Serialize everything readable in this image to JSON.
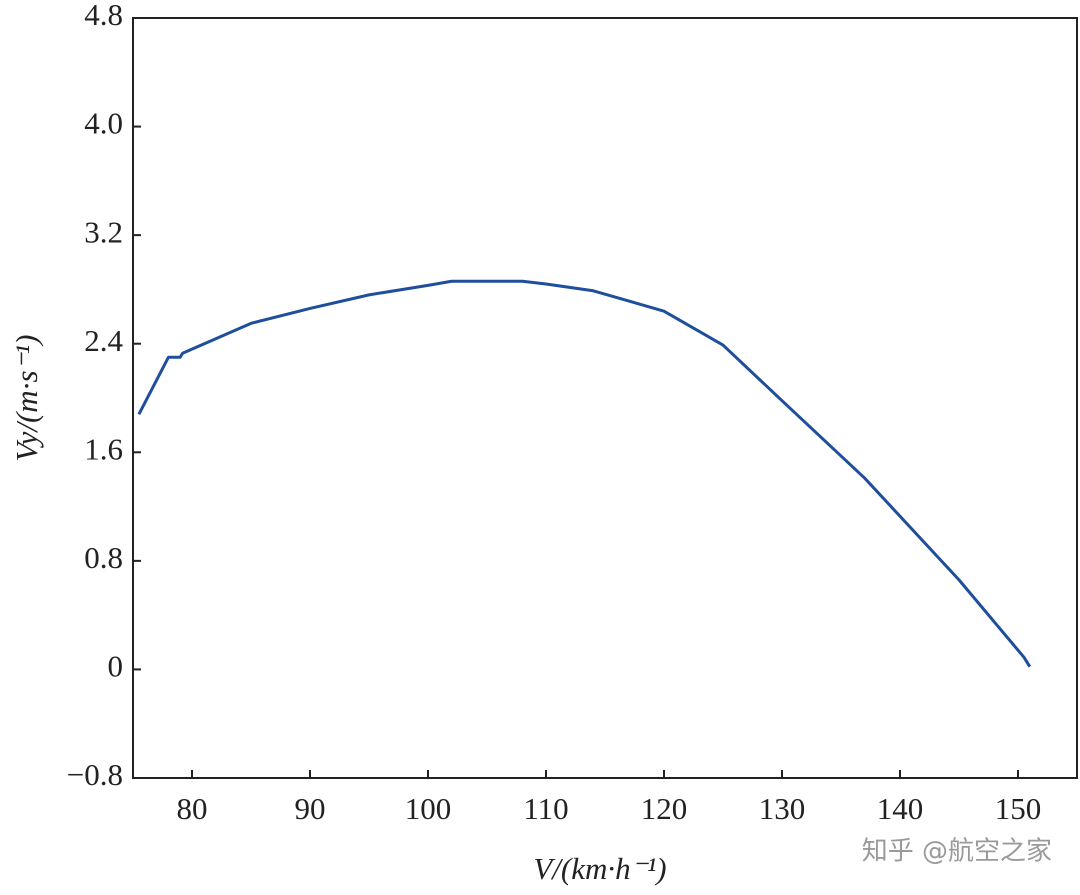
{
  "chart_data": {
    "type": "line",
    "x_label": "V/(km·h⁻¹)",
    "y_label": "Vy/(m·s⁻¹)",
    "watermark": "知乎 @航空之家",
    "x": [
      75.5,
      78,
      79,
      79.2,
      85,
      90,
      95,
      100,
      102,
      108,
      110,
      114,
      120,
      125,
      130,
      137,
      145,
      150.5,
      151
    ],
    "series": [
      {
        "name": "Vy",
        "color": "#1f4e9c",
        "values": [
          1.88,
          2.3,
          2.3,
          2.33,
          2.55,
          2.66,
          2.76,
          2.83,
          2.86,
          2.86,
          2.84,
          2.79,
          2.64,
          2.39,
          1.98,
          1.41,
          0.66,
          0.09,
          0.02
        ]
      }
    ],
    "xlim": [
      75,
      155
    ],
    "xticks": [
      80,
      90,
      100,
      110,
      120,
      130,
      140,
      150
    ],
    "ylim": [
      -0.8,
      4.8
    ],
    "yticks": [
      {
        "value": -0.8,
        "label": "−0.8"
      },
      0,
      0.8,
      1.6,
      2.4,
      3.2,
      {
        "value": 4,
        "label": "4.0"
      },
      4.8
    ],
    "grid": false
  }
}
